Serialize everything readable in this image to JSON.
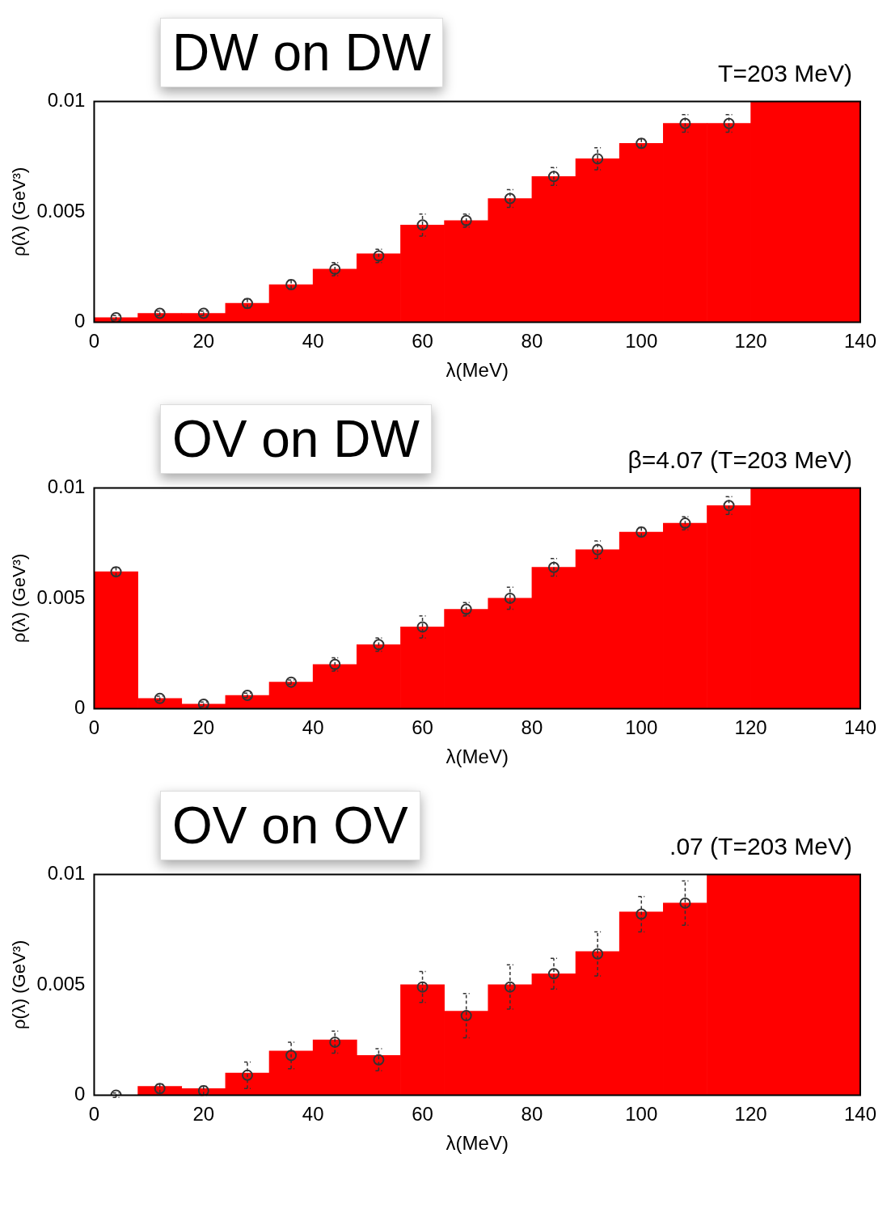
{
  "chart_data": [
    {
      "type": "histogram",
      "title": "DW on DW",
      "subtitle": "T=203 MeV)",
      "xlabel": "λ(MeV)",
      "ylabel": "ρ(λ) (GeV³)",
      "bins": [
        0,
        8,
        16,
        24,
        32,
        40,
        48,
        56,
        64,
        72,
        80,
        88,
        96,
        104,
        112,
        120,
        140
      ],
      "values": [
        0.0002,
        0.0004,
        0.0004,
        0.00085,
        0.0017,
        0.0024,
        0.0031,
        0.0044,
        0.0046,
        0.0056,
        0.0066,
        0.0074,
        0.0081,
        0.009,
        0.009,
        0.01
      ],
      "color": "#ff0000",
      "series": [
        {
          "type": "scatter",
          "color": "#333333",
          "x": [
            4,
            12,
            20,
            28,
            36,
            44,
            52,
            60,
            68,
            76,
            84,
            92,
            100,
            108,
            116
          ],
          "values": [
            0.0002,
            0.0004,
            0.0004,
            0.00085,
            0.0017,
            0.0024,
            0.003,
            0.0044,
            0.0046,
            0.0056,
            0.0066,
            0.0074,
            0.0081,
            0.009,
            0.009
          ],
          "errors": [
            0.0001,
            0.0001,
            0.0001,
            0.0002,
            0.0002,
            0.0003,
            0.0003,
            0.0005,
            0.0003,
            0.0004,
            0.0004,
            0.0005,
            0.0002,
            0.0004,
            0.0004
          ]
        }
      ],
      "xlim": [
        0,
        140
      ],
      "xticks": [
        0,
        20,
        40,
        60,
        80,
        100,
        120,
        140
      ],
      "ylim": [
        0,
        0.01
      ],
      "yticks": [
        0,
        0.005,
        0.01
      ],
      "marker": "circle",
      "grid": false,
      "legend": false
    },
    {
      "type": "histogram",
      "title": "OV on DW",
      "subtitle": "β=4.07 (T=203 MeV)",
      "xlabel": "λ(MeV)",
      "ylabel": "ρ(λ) (GeV³)",
      "bins": [
        0,
        8,
        16,
        24,
        32,
        40,
        48,
        56,
        64,
        72,
        80,
        88,
        96,
        104,
        112,
        120,
        140
      ],
      "values": [
        0.0062,
        0.00046,
        0.0002,
        0.0006,
        0.0012,
        0.002,
        0.0029,
        0.0037,
        0.0045,
        0.005,
        0.0064,
        0.0072,
        0.008,
        0.0084,
        0.0092,
        0.01
      ],
      "color": "#ff0000",
      "series": [
        {
          "type": "scatter",
          "color": "#333333",
          "x": [
            4,
            12,
            20,
            28,
            36,
            44,
            52,
            60,
            68,
            76,
            84,
            92,
            100,
            108,
            116
          ],
          "values": [
            0.0062,
            0.00046,
            0.0002,
            0.0006,
            0.0012,
            0.002,
            0.0029,
            0.0037,
            0.0045,
            0.005,
            0.0064,
            0.0072,
            0.008,
            0.0084,
            0.0092
          ],
          "errors": [
            0.0002,
            0.0001,
            0.0001,
            0.0001,
            0.0001,
            0.0003,
            0.0003,
            0.0005,
            0.0003,
            0.0005,
            0.0004,
            0.0004,
            0.0002,
            0.0003,
            0.0004
          ]
        }
      ],
      "xlim": [
        0,
        140
      ],
      "xticks": [
        0,
        20,
        40,
        60,
        80,
        100,
        120,
        140
      ],
      "ylim": [
        0,
        0.01
      ],
      "yticks": [
        0,
        0.005,
        0.01
      ],
      "marker": "circle",
      "grid": false,
      "legend": false
    },
    {
      "type": "histogram",
      "title": "OV on OV",
      "subtitle": ".07 (T=203 MeV)",
      "xlabel": "λ(MeV)",
      "ylabel": "ρ(λ) (GeV³)",
      "bins": [
        0,
        8,
        16,
        24,
        32,
        40,
        48,
        56,
        64,
        72,
        80,
        88,
        96,
        104,
        112,
        140
      ],
      "values": [
        0,
        0.0004,
        0.0003,
        0.001,
        0.002,
        0.0025,
        0.0018,
        0.005,
        0.0038,
        0.005,
        0.0055,
        0.0065,
        0.0083,
        0.0087,
        0.01
      ],
      "color": "#ff0000",
      "series": [
        {
          "type": "scatter",
          "color": "#333333",
          "x": [
            4,
            12,
            20,
            28,
            36,
            44,
            52,
            60,
            68,
            76,
            84,
            92,
            100,
            108
          ],
          "values": [
            0,
            0.0003,
            0.0002,
            0.0009,
            0.0018,
            0.0024,
            0.0016,
            0.0049,
            0.0036,
            0.0049,
            0.0055,
            0.0064,
            0.0082,
            0.0087
          ],
          "errors": [
            0.0001,
            0.0002,
            0.0002,
            0.0006,
            0.0006,
            0.0005,
            0.0005,
            0.0007,
            0.001,
            0.001,
            0.0007,
            0.001,
            0.0008,
            0.001
          ]
        }
      ],
      "xlim": [
        0,
        140
      ],
      "xticks": [
        0,
        20,
        40,
        60,
        80,
        100,
        120,
        140
      ],
      "ylim": [
        0,
        0.01
      ],
      "yticks": [
        0,
        0.005,
        0.01
      ],
      "marker": "circle",
      "grid": false,
      "legend": false
    }
  ]
}
